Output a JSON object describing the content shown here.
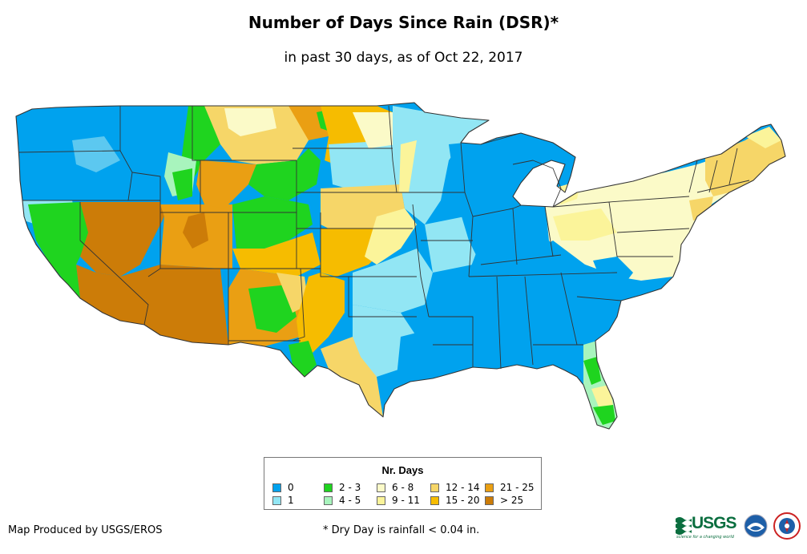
{
  "header": {
    "title": "Number of Days Since Rain (DSR)*",
    "subtitle": "in past 30 days, as of Oct 22, 2017"
  },
  "legend": {
    "title": "Nr. Days",
    "items": [
      {
        "label": "0",
        "color": "#00a2ee"
      },
      {
        "label": "1",
        "color": "#92e6f4"
      },
      {
        "label": "2 - 3",
        "color": "#1fd41f"
      },
      {
        "label": "4 - 5",
        "color": "#a8f4bd"
      },
      {
        "label": "6 - 8",
        "color": "#fbfac8"
      },
      {
        "label": "9 - 11",
        "color": "#fbf49a"
      },
      {
        "label": "12 - 14",
        "color": "#f6d668"
      },
      {
        "label": "15 - 20",
        "color": "#f6bc00"
      },
      {
        "label": "21 - 25",
        "color": "#ea9f13"
      },
      {
        "label": "> 25",
        "color": "#cc7c08"
      }
    ]
  },
  "footer": {
    "credit": "Map Produced by USGS/EROS",
    "footnote": "* Dry Day is rainfall < 0.04 in."
  },
  "logos": {
    "usgs_text": "USGS",
    "usgs_tagline": "science for a changing world",
    "noaa_icon": "noaa-logo-icon",
    "nws_icon": "national-weather-service-logo-icon"
  },
  "map": {
    "region": "contiguous-united-states",
    "ocean_color": "#ffffff",
    "border_color": "#333333"
  }
}
